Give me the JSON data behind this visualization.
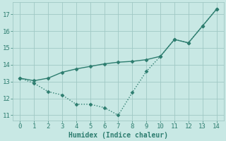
{
  "line1_x": [
    0,
    1,
    2,
    3,
    4,
    5,
    6,
    7,
    8,
    9,
    10,
    11,
    12,
    13,
    14
  ],
  "line1_y": [
    13.2,
    13.05,
    13.2,
    13.55,
    13.75,
    13.9,
    14.05,
    14.15,
    14.2,
    14.3,
    14.5,
    15.5,
    15.3,
    16.3,
    17.3
  ],
  "line2_x": [
    0,
    1,
    2,
    3,
    4,
    5,
    6,
    7,
    8,
    9,
    10,
    11,
    12,
    13,
    14
  ],
  "line2_y": [
    13.2,
    12.9,
    12.4,
    12.2,
    11.65,
    11.65,
    11.45,
    11.0,
    12.35,
    13.6,
    14.5,
    15.5,
    15.3,
    16.3,
    17.3
  ],
  "line_color": "#2d7d6f",
  "bg_color": "#c8e8e4",
  "grid_color": "#a0c8c4",
  "xlabel": "Humidex (Indice chaleur)",
  "xlim": [
    -0.5,
    14.5
  ],
  "ylim": [
    10.7,
    17.7
  ],
  "xticks": [
    0,
    1,
    2,
    3,
    4,
    5,
    6,
    7,
    8,
    9,
    10,
    11,
    12,
    13,
    14
  ],
  "yticks": [
    11,
    12,
    13,
    14,
    15,
    16,
    17
  ],
  "markersize": 2.5,
  "linewidth": 1.0,
  "xlabel_fontsize": 7,
  "tick_fontsize": 6.5
}
